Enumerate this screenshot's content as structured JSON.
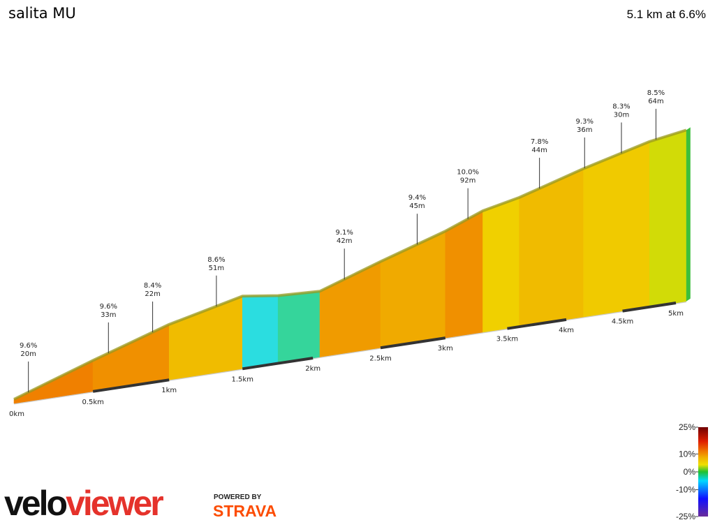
{
  "chart_data": {
    "type": "profile",
    "title": "salita MU",
    "summary": "5.1 km at 6.6%",
    "x": [
      0,
      0.5,
      1.0,
      1.5,
      1.75,
      2.05,
      2.5,
      3.0,
      3.3,
      3.6,
      4.15,
      4.75,
      5.1
    ],
    "values": [
      0,
      55,
      105,
      140,
      130,
      126,
      168,
      210,
      240,
      256,
      295,
      330,
      342
    ],
    "xticks": [
      {
        "value": 0,
        "label": "0km"
      },
      {
        "value": 0.5,
        "label": "0.5km"
      },
      {
        "value": 1,
        "label": "1km"
      },
      {
        "value": 1.5,
        "label": "1.5km"
      },
      {
        "value": 2,
        "label": "2km"
      },
      {
        "value": 2.5,
        "label": "2.5km"
      },
      {
        "value": 3,
        "label": "3km"
      },
      {
        "value": 3.5,
        "label": "3.5km"
      },
      {
        "value": 4,
        "label": "4km"
      },
      {
        "value": 4.5,
        "label": "4.5km"
      },
      {
        "value": 5,
        "label": "5km"
      }
    ],
    "annotations": [
      {
        "x": 0.09,
        "grade": {
          "value": 9.6,
          "label": "9.6%"
        },
        "length": {
          "value": 20,
          "label": "20m"
        }
      },
      {
        "x": 0.6,
        "grade": {
          "value": 9.6,
          "label": "9.6%"
        },
        "length": {
          "value": 33,
          "label": "33m"
        }
      },
      {
        "x": 0.89,
        "grade": {
          "value": 8.4,
          "label": "8.4%"
        },
        "length": {
          "value": 22,
          "label": "22m"
        }
      },
      {
        "x": 1.32,
        "grade": {
          "value": 8.6,
          "label": "8.6%"
        },
        "length": {
          "value": 51,
          "label": "51m"
        }
      },
      {
        "x": 2.23,
        "grade": {
          "value": 9.1,
          "label": "9.1%"
        },
        "length": {
          "value": 42,
          "label": "42m"
        }
      },
      {
        "x": 2.78,
        "grade": {
          "value": 9.4,
          "label": "9.4%"
        },
        "length": {
          "value": 45,
          "label": "45m"
        }
      },
      {
        "x": 3.18,
        "grade": {
          "value": 10.0,
          "label": "10.0%"
        },
        "length": {
          "value": 92,
          "label": "92m"
        }
      },
      {
        "x": 3.77,
        "grade": {
          "value": 7.8,
          "label": "7.8%"
        },
        "length": {
          "value": 44,
          "label": "44m"
        }
      },
      {
        "x": 4.16,
        "grade": {
          "value": 9.3,
          "label": "9.3%"
        },
        "length": {
          "value": 36,
          "label": "36m"
        }
      },
      {
        "x": 4.49,
        "grade": {
          "value": 8.3,
          "label": "8.3%"
        },
        "length": {
          "value": 30,
          "label": "30m"
        }
      },
      {
        "x": 4.81,
        "grade": {
          "value": 8.5,
          "label": "8.5%"
        },
        "length": {
          "value": 64,
          "label": "64m"
        }
      }
    ],
    "legend_ticks": [
      {
        "value": 25,
        "label": "25%"
      },
      {
        "value": 10,
        "label": "10%"
      },
      {
        "value": 0,
        "label": "0%"
      },
      {
        "value": -10,
        "label": "-10%"
      },
      {
        "value": -25,
        "label": "-25%"
      }
    ],
    "logo": [
      "velo",
      "viewer"
    ],
    "powered_by": "POWERED BY",
    "strava": "STRAVA"
  }
}
